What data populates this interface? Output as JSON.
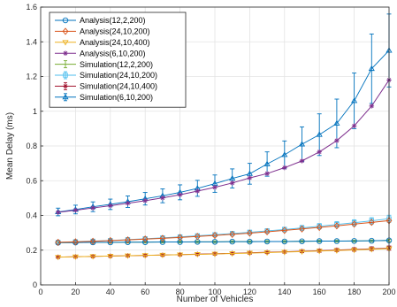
{
  "chart_data": {
    "type": "line",
    "xlabel": "Number of Vehicles",
    "ylabel": "Mean Delay (ms)",
    "xlim": [
      0,
      200
    ],
    "ylim": [
      0,
      1.6
    ],
    "xticks": [
      "0",
      "20",
      "40",
      "60",
      "80",
      "100",
      "120",
      "140",
      "160",
      "180",
      "200"
    ],
    "yticks": [
      "0",
      "0.2",
      "0.4",
      "0.6",
      "0.8",
      "1",
      "1.2",
      "1.4",
      "1.6"
    ],
    "grid": true,
    "legend_position": "top-left",
    "x": [
      10,
      20,
      30,
      40,
      50,
      60,
      70,
      80,
      90,
      100,
      110,
      120,
      130,
      140,
      150,
      160,
      170,
      180,
      190,
      200
    ],
    "series": [
      {
        "name": "Analysis(12,2,200)",
        "kind": "analysis",
        "color": "#0072BD",
        "marker": "circle",
        "values": [
          0.243,
          0.244,
          0.245,
          0.245,
          0.246,
          0.246,
          0.247,
          0.247,
          0.248,
          0.248,
          0.249,
          0.249,
          0.25,
          0.25,
          0.251,
          0.252,
          0.252,
          0.253,
          0.254,
          0.256
        ]
      },
      {
        "name": "Analysis(24,10,200)",
        "kind": "analysis",
        "color": "#D95319",
        "marker": "diamond",
        "values": [
          0.245,
          0.248,
          0.251,
          0.255,
          0.259,
          0.264,
          0.268,
          0.273,
          0.279,
          0.285,
          0.291,
          0.298,
          0.306,
          0.314,
          0.322,
          0.331,
          0.34,
          0.35,
          0.36,
          0.37
        ]
      },
      {
        "name": "Analysis(24,10,400)",
        "kind": "analysis",
        "color": "#EDB120",
        "marker": "triangle-down",
        "values": [
          0.16,
          0.162,
          0.164,
          0.166,
          0.168,
          0.17,
          0.172,
          0.174,
          0.176,
          0.178,
          0.181,
          0.183,
          0.186,
          0.189,
          0.192,
          0.195,
          0.198,
          0.201,
          0.205,
          0.209
        ]
      },
      {
        "name": "Analysis(6,10,200)",
        "kind": "analysis",
        "color": "#7E2F8E",
        "marker": "star",
        "values": [
          0.418,
          0.43,
          0.443,
          0.456,
          0.47,
          0.485,
          0.501,
          0.519,
          0.54,
          0.562,
          0.587,
          0.616,
          0.641,
          0.675,
          0.714,
          0.766,
          0.831,
          0.916,
          1.03,
          1.18
        ]
      },
      {
        "name": "Simulation(12,2,200)",
        "kind": "simulation",
        "color": "#77AC30",
        "marker": "none",
        "values": [
          0.243,
          0.244,
          0.245,
          0.245,
          0.246,
          0.246,
          0.247,
          0.247,
          0.248,
          0.248,
          0.249,
          0.249,
          0.25,
          0.25,
          0.251,
          0.252,
          0.252,
          0.253,
          0.254,
          0.256
        ],
        "errors": [
          0.005,
          0.005,
          0.005,
          0.005,
          0.005,
          0.005,
          0.005,
          0.005,
          0.005,
          0.005,
          0.005,
          0.005,
          0.005,
          0.005,
          0.005,
          0.005,
          0.005,
          0.005,
          0.005,
          0.006
        ]
      },
      {
        "name": "Simulation(24,10,200)",
        "kind": "simulation",
        "color": "#4DBEEE",
        "marker": "square",
        "values": [
          0.245,
          0.249,
          0.252,
          0.256,
          0.261,
          0.266,
          0.271,
          0.277,
          0.283,
          0.289,
          0.296,
          0.303,
          0.311,
          0.319,
          0.328,
          0.338,
          0.348,
          0.358,
          0.369,
          0.381
        ],
        "errors": [
          0.006,
          0.006,
          0.007,
          0.007,
          0.008,
          0.008,
          0.009,
          0.009,
          0.01,
          0.01,
          0.011,
          0.012,
          0.012,
          0.013,
          0.014,
          0.015,
          0.016,
          0.017,
          0.018,
          0.02
        ]
      },
      {
        "name": "Simulation(24,10,400)",
        "kind": "simulation",
        "color": "#A2142F",
        "marker": "star",
        "values": [
          0.16,
          0.162,
          0.164,
          0.166,
          0.168,
          0.17,
          0.172,
          0.174,
          0.177,
          0.179,
          0.182,
          0.185,
          0.188,
          0.191,
          0.194,
          0.197,
          0.201,
          0.204,
          0.208,
          0.212
        ],
        "errors": [
          0.004,
          0.004,
          0.004,
          0.004,
          0.005,
          0.005,
          0.005,
          0.005,
          0.006,
          0.006,
          0.006,
          0.007,
          0.007,
          0.008,
          0.008,
          0.009,
          0.009,
          0.01,
          0.011,
          0.012
        ]
      },
      {
        "name": "Simulation(6,10,200)",
        "kind": "simulation",
        "color": "#0072BD",
        "marker": "triangle-up",
        "values": [
          0.42,
          0.434,
          0.45,
          0.464,
          0.479,
          0.496,
          0.513,
          0.533,
          0.556,
          0.583,
          0.613,
          0.64,
          0.696,
          0.749,
          0.81,
          0.865,
          0.93,
          1.06,
          1.245,
          1.35
        ],
        "errors": [
          0.022,
          0.025,
          0.028,
          0.03,
          0.033,
          0.036,
          0.04,
          0.043,
          0.046,
          0.05,
          0.055,
          0.06,
          0.07,
          0.08,
          0.1,
          0.12,
          0.14,
          0.16,
          0.2,
          0.21
        ]
      }
    ]
  }
}
